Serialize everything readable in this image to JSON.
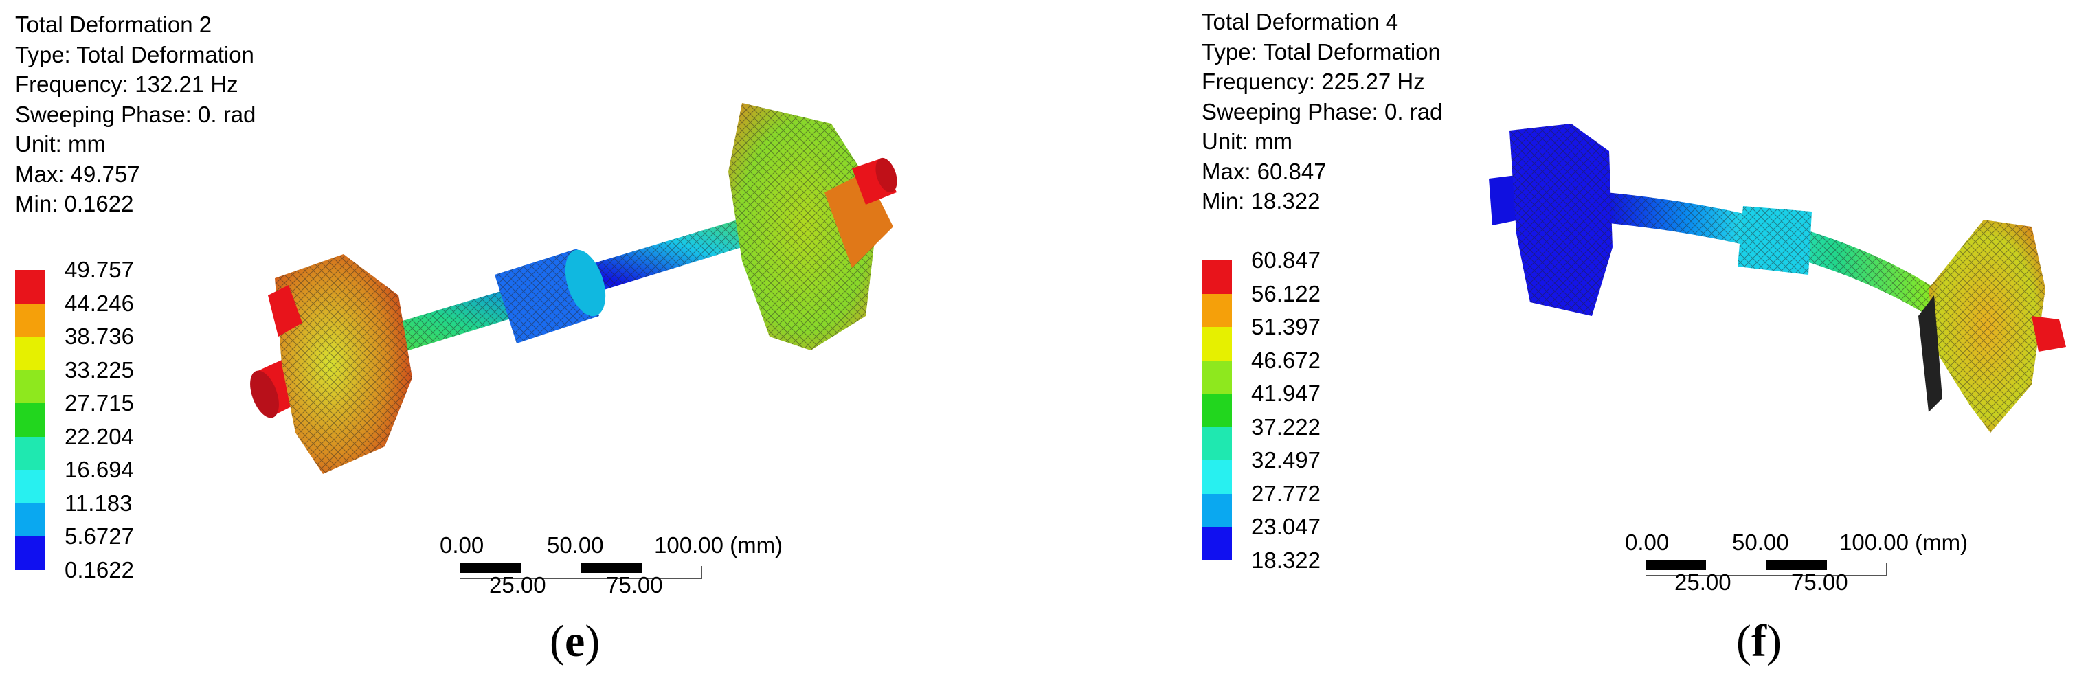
{
  "panels": [
    {
      "info": {
        "title": "Total Deformation 2",
        "type": "Type: Total Deformation",
        "frequency": "Frequency: 132.21 Hz",
        "phase": "Sweeping Phase: 0. rad",
        "unit": "Unit: mm",
        "max": "Max: 49.757",
        "min": "Min: 0.1622"
      },
      "legend": [
        "49.757",
        "44.246",
        "38.736",
        "33.225",
        "27.715",
        "22.204",
        "16.694",
        "11.183",
        "5.6727",
        "0.1622"
      ],
      "scale": {
        "top": [
          "0.00",
          "50.00",
          "100.00 (mm)"
        ],
        "bottom": [
          "25.00",
          "75.00"
        ]
      },
      "caption": {
        "open": "(",
        "letter": "e",
        "close": ")"
      }
    },
    {
      "info": {
        "title": "Total Deformation 4",
        "type": "Type: Total Deformation",
        "frequency": "Frequency: 225.27 Hz",
        "phase": "Sweeping Phase: 0. rad",
        "unit": "Unit: mm",
        "max": "Max: 60.847",
        "min": "Min: 18.322"
      },
      "legend": [
        "60.847",
        "56.122",
        "51.397",
        "46.672",
        "41.947",
        "37.222",
        "32.497",
        "27.772",
        "23.047",
        "18.322"
      ],
      "scale": {
        "top": [
          "0.00",
          "50.00",
          "100.00 (mm)"
        ],
        "bottom": [
          "25.00",
          "75.00"
        ]
      },
      "caption": {
        "open": "(",
        "letter": "f",
        "close": ")"
      }
    }
  ],
  "legend_colors": [
    "#e8141b",
    "#f5a00a",
    "#e6f000",
    "#8ee81e",
    "#22d61e",
    "#1fe8b0",
    "#28f0f0",
    "#0aa8f0",
    "#1010f0"
  ]
}
